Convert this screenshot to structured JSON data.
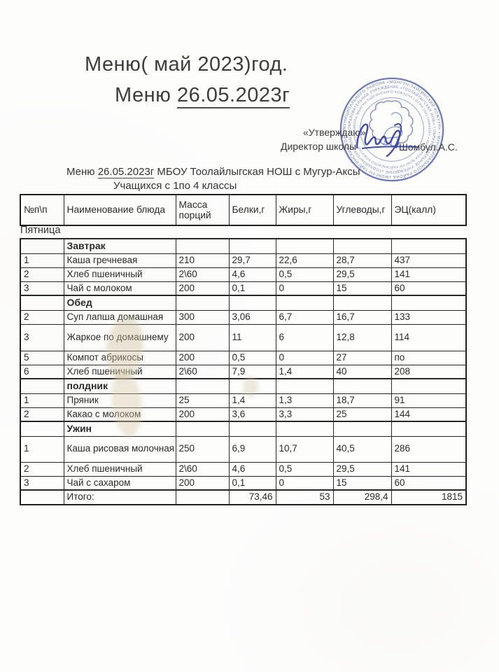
{
  "document": {
    "title_line1": "Меню( май  2023)год.",
    "title_line2": {
      "prefix": "Меню ",
      "date": "26.05.2023г"
    },
    "approval": {
      "quote": "«Утверждаю»",
      "role": "Директор школы",
      "name": "Шомбул.А.С."
    },
    "subheader": {
      "prefix": "Меню ",
      "date": "26.05.2023г",
      "rest": " МБОУ  Тоолайлыгская НОШ  с Мугур-Аксы"
    },
    "audience": "Учащихся с 1по 4 классы",
    "day": "Пятница"
  },
  "stamp": {
    "color": "#4355ab",
    "ring_text_outer": "МУНИЦИПАЛЬНОГО РАЙОНА «МОНГУН-ТАЙГИНСКИЙ КОЖУУН» • ",
    "ring_text_middle": "ОБРАЗОВАТЕЛЬНОЕ УЧРЕЖДЕНИЕ «ТООЛАЙЛЫГСКАЯ НОШ» • ",
    "ring_text_inner": "ШКОЛА МОНГУН-ТАЙГИНСКОГО КОЖУУНА • ОГРН 1041700644347 • ИНН "
  },
  "table": {
    "headers": [
      "№п\\п",
      "Наименование блюда",
      "Масса порций",
      "Белки,г",
      "Жиры,г",
      "Углеводы,г",
      "ЭЦ(калл)"
    ],
    "sections": [
      {
        "name": "Завтрак",
        "rows": [
          [
            "1",
            "Каша гречневая",
            "210",
            "29,7",
            "22,6",
            "28,7",
            "437"
          ],
          [
            "2",
            "Хлеб пшеничный",
            "2\\60",
            "4,6",
            "0,5",
            "29,5",
            "141"
          ],
          [
            "3",
            "Чай с молоком",
            "200",
            "0,1",
            "0",
            "15",
            "60"
          ]
        ]
      },
      {
        "name": "Обед",
        "rows": [
          [
            "2",
            "Суп лапша домашная",
            "300",
            "3,06",
            "6,7",
            "16,7",
            "133"
          ],
          [
            "3",
            "Жаркое по домашнему",
            "200",
            "11",
            "6",
            "12,8",
            "114"
          ],
          [
            "5",
            "Компот абрикосы",
            "200",
            "0,5",
            "0",
            "27",
            "по"
          ],
          [
            "6",
            "Хлеб пшеничный",
            "2\\60",
            "7,9",
            "1,4",
            "40",
            "208"
          ]
        ]
      },
      {
        "name": "полдник",
        "rows": [
          [
            "1",
            "Пряник",
            "25",
            "1,4",
            "1,3",
            "18,7",
            "91"
          ],
          [
            "2",
            "Какао с молоком",
            "200",
            "3,6",
            "3,3",
            "25",
            "144"
          ]
        ]
      },
      {
        "name": "Ужин",
        "rows": [
          [
            "1",
            "Каша рисовая молочная",
            "250",
            "6,9",
            "10,7",
            "40,5",
            "286"
          ],
          [
            "2",
            "Хлеб пшеничный",
            "2\\60",
            "4,6",
            "0,5",
            "29,5",
            "141"
          ],
          [
            "3",
            "Чай с сахаром",
            "200",
            "0,1",
            "0",
            "15",
            "60"
          ]
        ]
      }
    ],
    "total": {
      "label": "Итого:",
      "protein": "73,46",
      "fats": "53",
      "carbs": "298,4",
      "energy": "1815"
    }
  }
}
